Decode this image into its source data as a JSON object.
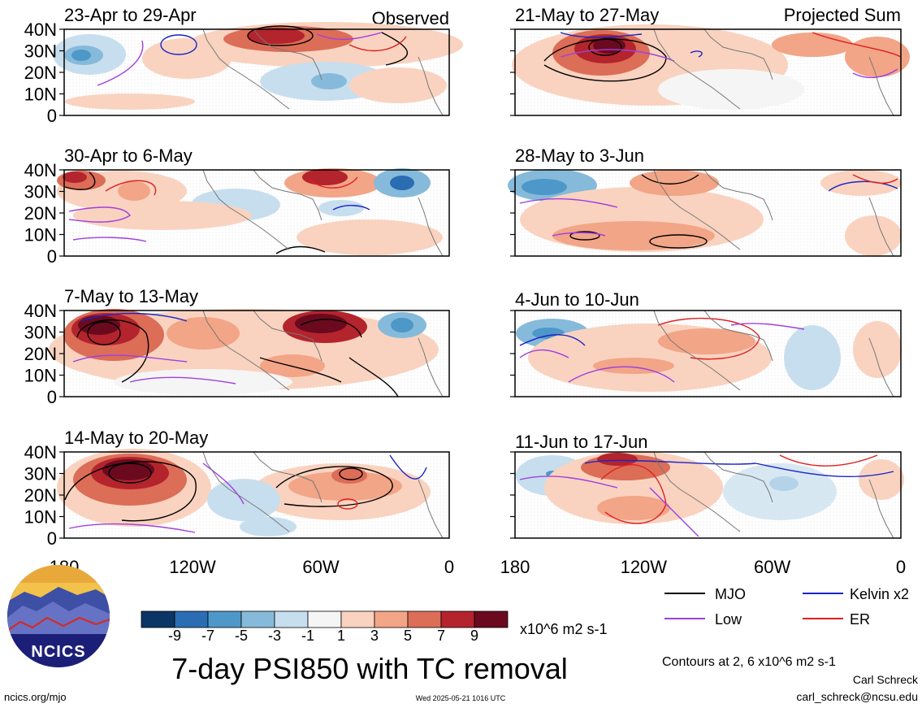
{
  "panels": [
    {
      "period": "23-Apr to 29-Apr",
      "tag": "Observed"
    },
    {
      "period": "30-Apr to 6-May",
      "tag": ""
    },
    {
      "period": "7-May to 13-May",
      "tag": ""
    },
    {
      "period": "14-May to 20-May",
      "tag": ""
    },
    {
      "period": "21-May to 27-May",
      "tag": "Projected Sum"
    },
    {
      "period": "28-May to 3-Jun",
      "tag": ""
    },
    {
      "period": "4-Jun to 10-Jun",
      "tag": ""
    },
    {
      "period": "11-Jun to 17-Jun",
      "tag": ""
    }
  ],
  "lat_labels": [
    "40N",
    "30N",
    "20N",
    "10N",
    "0"
  ],
  "lon_labels": [
    "180",
    "120W",
    "60W",
    "0"
  ],
  "colorbar": {
    "levels": [
      "-9",
      "-7",
      "-5",
      "-3",
      "-1",
      "1",
      "3",
      "5",
      "7",
      "9"
    ],
    "colors": [
      "#0b3566",
      "#2a6db3",
      "#4e97c9",
      "#86bada",
      "#c7deee",
      "#f5f5f5",
      "#f9d3c0",
      "#f2a587",
      "#dc6d57",
      "#b4242d",
      "#6b0a1f"
    ],
    "units": "x10^6 m2 s-1"
  },
  "legend": [
    {
      "label": "MJO",
      "color": "#000000"
    },
    {
      "label": "Kelvin x2",
      "color": "#1a24c8"
    },
    {
      "label": "Low",
      "color": "#a040e0"
    },
    {
      "label": "ER",
      "color": "#e02020"
    }
  ],
  "title": "7-day PSI850 with TC removal",
  "contours_note": "Contours at 2, 6 x10^6 m2 s-1",
  "logo_text": "NCICS",
  "website": "ncics.org/mjo",
  "timestamp": "Wed 2025-05-21 1016 UTC",
  "author": "Carl Schreck",
  "email": "carl_schreck@ncsu.edu"
}
